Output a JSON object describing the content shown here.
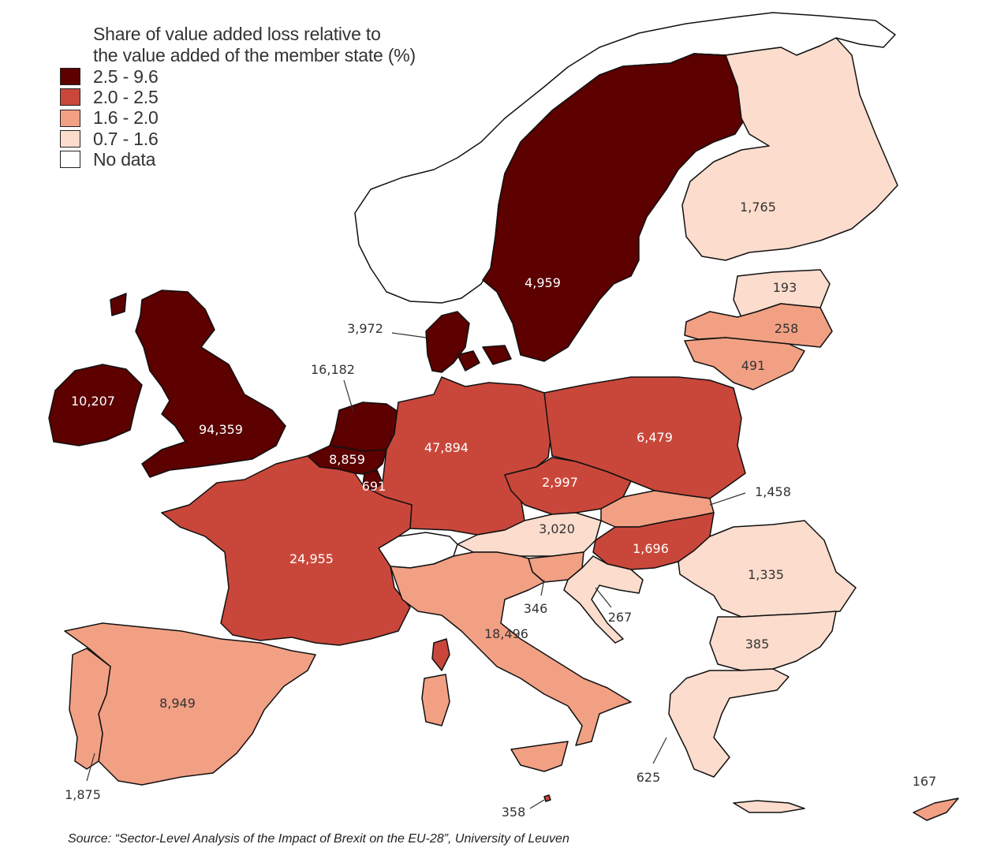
{
  "legend": {
    "title_line1": "Share of value added loss relative to",
    "title_line2": "the value added of the member state (%)",
    "items": [
      {
        "label": "2.5 - 9.6",
        "color": "#5c0000"
      },
      {
        "label": "2.0 - 2.5",
        "color": "#c9473a"
      },
      {
        "label": "1.6 - 2.0",
        "color": "#f2a084"
      },
      {
        "label": "0.7 - 1.6",
        "color": "#fbdccd"
      },
      {
        "label": "No data",
        "color": "#ffffff"
      }
    ]
  },
  "regions": [
    {
      "country": "Ireland",
      "value": "10,207",
      "color": "#5c0000"
    },
    {
      "country": "United Kingdom",
      "value": "94,359",
      "color": "#5c0000"
    },
    {
      "country": "Netherlands",
      "value": "16,182",
      "color": "#5c0000"
    },
    {
      "country": "Belgium",
      "value": "8,859",
      "color": "#5c0000"
    },
    {
      "country": "Luxembourg",
      "value": "691",
      "color": "#5c0000"
    },
    {
      "country": "Denmark",
      "value": "3,972",
      "color": "#5c0000"
    },
    {
      "country": "Sweden",
      "value": "4,959",
      "color": "#5c0000"
    },
    {
      "country": "Germany",
      "value": "47,894",
      "color": "#c9473a"
    },
    {
      "country": "France",
      "value": "24,955",
      "color": "#c9473a"
    },
    {
      "country": "Poland",
      "value": "6,479",
      "color": "#c9473a"
    },
    {
      "country": "Czech Republic",
      "value": "2,997",
      "color": "#c9473a"
    },
    {
      "country": "Hungary",
      "value": "1,696",
      "color": "#c9473a"
    },
    {
      "country": "Malta",
      "value": "358",
      "color": "#c9473a"
    },
    {
      "country": "Spain",
      "value": "8,949",
      "color": "#f2a084"
    },
    {
      "country": "Portugal",
      "value": "1,875",
      "color": "#f2a084"
    },
    {
      "country": "Italy",
      "value": "18,496",
      "color": "#f2a084"
    },
    {
      "country": "Slovakia",
      "value": "1,458",
      "color": "#f2a084"
    },
    {
      "country": "Slovenia",
      "value": "346",
      "color": "#f2a084"
    },
    {
      "country": "Latvia",
      "value": "258",
      "color": "#f2a084"
    },
    {
      "country": "Lithuania",
      "value": "491",
      "color": "#f2a084"
    },
    {
      "country": "Cyprus",
      "value": "167",
      "color": "#f2a084"
    },
    {
      "country": "Finland",
      "value": "1,765",
      "color": "#fbdccd"
    },
    {
      "country": "Estonia",
      "value": "193",
      "color": "#fbdccd"
    },
    {
      "country": "Austria",
      "value": "3,020",
      "color": "#fbdccd"
    },
    {
      "country": "Romania",
      "value": "1,335",
      "color": "#fbdccd"
    },
    {
      "country": "Bulgaria",
      "value": "385",
      "color": "#fbdccd"
    },
    {
      "country": "Greece",
      "value": "625",
      "color": "#fbdccd"
    },
    {
      "country": "Croatia",
      "value": "267",
      "color": "#fbdccd"
    },
    {
      "country": "Norway",
      "value": "",
      "color": "#ffffff"
    },
    {
      "country": "Switzerland",
      "value": "",
      "color": "#ffffff"
    }
  ],
  "source": "Source: “Sector-Level Analysis of the Impact of Brexit on the EU-28”, University of Leuven"
}
